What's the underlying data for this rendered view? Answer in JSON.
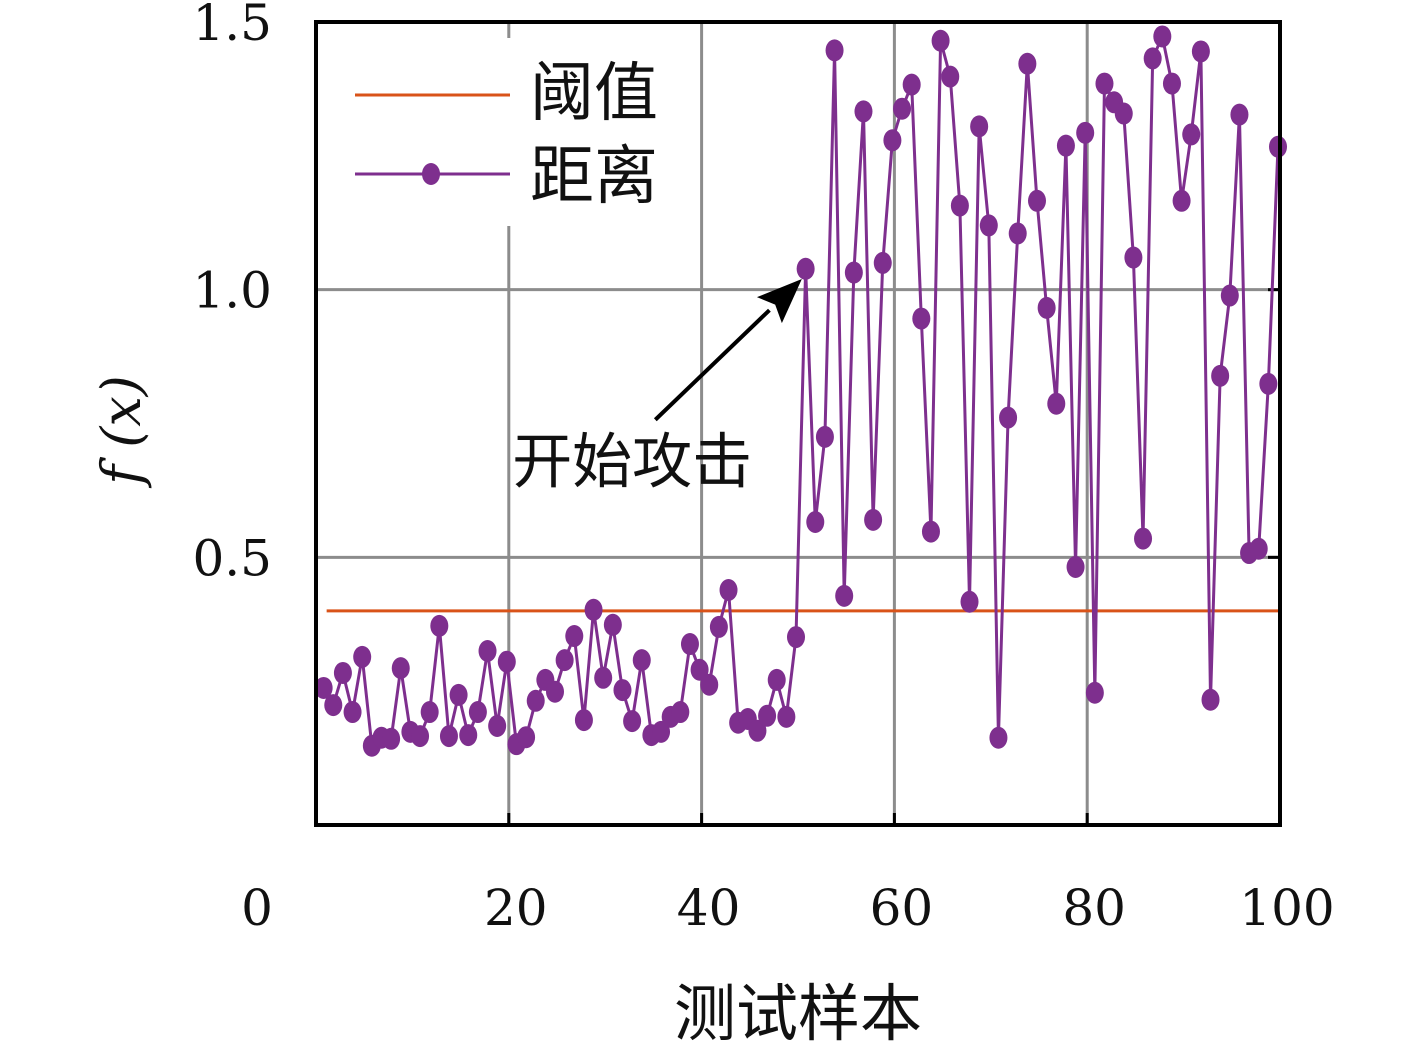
{
  "chart_data": {
    "type": "line",
    "title": "",
    "xlabel": "测试样本",
    "ylabel": "f (x)",
    "xlim": [
      0,
      100
    ],
    "ylim": [
      0,
      1.5
    ],
    "xticks": [
      "0",
      "20",
      "40",
      "60",
      "80",
      "100"
    ],
    "yticks": [
      "0.5",
      "1.0",
      "1.5"
    ],
    "grid": true,
    "legend_position": "top-left",
    "colors": {
      "threshold": "#d95319",
      "distance": "#7e2f8e",
      "grid": "#8c8c8c"
    },
    "series": [
      {
        "name": "阈值",
        "style": "line",
        "x": [
          1,
          100
        ],
        "values": [
          0.4,
          0.4
        ]
      },
      {
        "name": "距离",
        "style": "line-marker",
        "x": [
          1,
          2,
          3,
          4,
          5,
          6,
          7,
          8,
          9,
          10,
          11,
          12,
          13,
          14,
          15,
          16,
          17,
          18,
          19,
          20,
          21,
          22,
          23,
          24,
          25,
          26,
          27,
          28,
          29,
          30,
          31,
          32,
          33,
          34,
          35,
          36,
          37,
          38,
          39,
          40,
          41,
          42,
          43,
          44,
          45,
          46,
          47,
          48,
          49,
          50,
          51,
          52,
          53,
          54,
          55,
          56,
          57,
          58,
          59,
          60,
          61,
          62,
          63,
          64,
          65,
          66,
          67,
          68,
          69,
          70,
          71,
          72,
          73,
          74,
          75,
          76,
          77,
          78,
          79,
          80,
          81,
          82,
          83,
          84,
          85,
          86,
          87,
          88,
          89,
          90,
          91,
          92,
          93,
          94,
          95,
          96,
          97,
          98,
          99,
          100
        ],
        "values": [
          0.256,
          0.224,
          0.284,
          0.211,
          0.314,
          0.148,
          0.163,
          0.161,
          0.293,
          0.174,
          0.166,
          0.211,
          0.372,
          0.166,
          0.243,
          0.168,
          0.211,
          0.325,
          0.185,
          0.305,
          0.151,
          0.164,
          0.232,
          0.271,
          0.249,
          0.308,
          0.353,
          0.196,
          0.402,
          0.275,
          0.374,
          0.252,
          0.194,
          0.308,
          0.168,
          0.174,
          0.202,
          0.211,
          0.338,
          0.29,
          0.262,
          0.37,
          0.439,
          0.191,
          0.198,
          0.176,
          0.204,
          0.271,
          0.202,
          0.351,
          1.039,
          0.566,
          0.725,
          1.447,
          0.428,
          1.032,
          1.333,
          0.57,
          1.05,
          1.279,
          1.338,
          1.383,
          0.946,
          0.548,
          1.465,
          1.398,
          1.157,
          0.417,
          1.305,
          1.12,
          0.163,
          0.761,
          1.105,
          1.422,
          1.166,
          0.966,
          0.787,
          1.269,
          0.482,
          1.293,
          0.247,
          1.385,
          1.35,
          1.329,
          1.06,
          0.535,
          1.432,
          1.473,
          1.385,
          1.166,
          1.29,
          1.445,
          0.234,
          0.839,
          0.989,
          1.327,
          0.508,
          0.516,
          0.824,
          1.267
        ]
      }
    ],
    "annotations": [
      {
        "text": "开始攻击",
        "arrow_from": [
          35.2,
          0.757
        ],
        "arrow_to": [
          50.4,
          1.02
        ],
        "text_at": [
          32.8,
          0.64
        ]
      }
    ]
  }
}
